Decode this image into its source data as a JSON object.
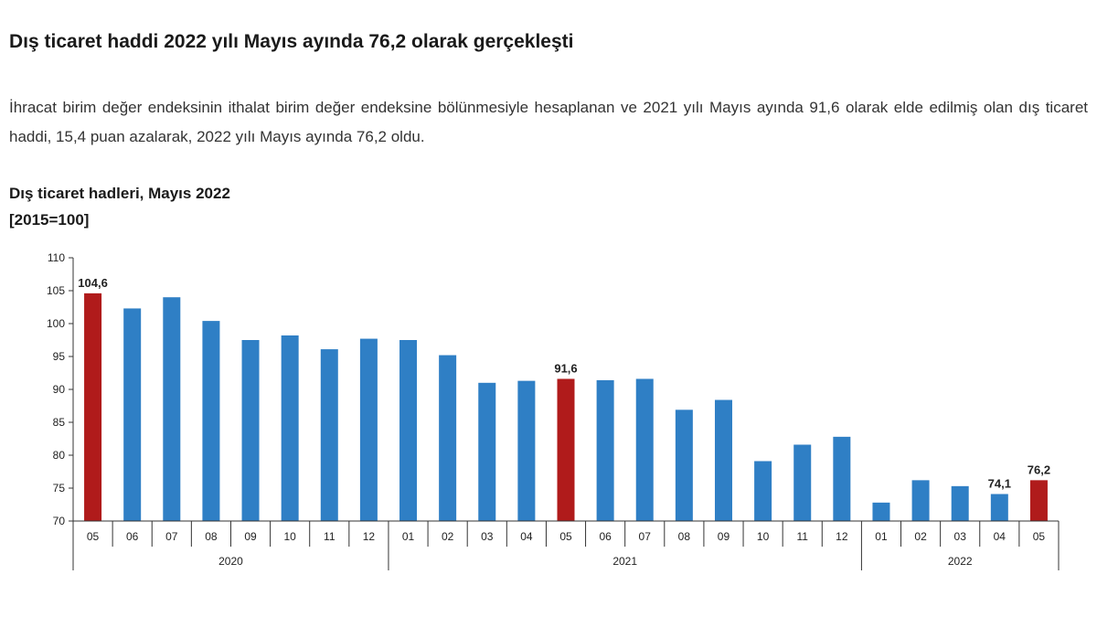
{
  "headline": "Dış ticaret haddi 2022 yılı Mayıs ayında 76,2 olarak gerçekleşti",
  "paragraph": "İhracat birim değer endeksinin ithalat birim değer endeksine bölünmesiyle hesaplanan ve 2021 yılı Mayıs ayında 91,6 olarak elde edilmiş olan dış ticaret haddi, 15,4 puan azalarak, 2022 yılı Mayıs ayında 76,2 oldu.",
  "colors": {
    "bar": "#2f7fc5",
    "highlight": "#b01b1b",
    "axis": "#333333"
  },
  "chart_data": {
    "type": "bar",
    "title": "Dış ticaret hadleri, Mayıs 2022",
    "subtitle": "[2015=100]",
    "ylim": [
      70,
      110
    ],
    "yticks": [
      70,
      75,
      80,
      85,
      90,
      95,
      100,
      105,
      110
    ],
    "categories": [
      "05",
      "06",
      "07",
      "08",
      "09",
      "10",
      "11",
      "12",
      "01",
      "02",
      "03",
      "04",
      "05",
      "06",
      "07",
      "08",
      "09",
      "10",
      "11",
      "12",
      "01",
      "02",
      "03",
      "04",
      "05"
    ],
    "values": [
      104.6,
      102.3,
      104.0,
      100.4,
      97.5,
      98.2,
      96.1,
      97.7,
      97.5,
      95.2,
      91.0,
      91.3,
      91.6,
      91.4,
      91.6,
      86.9,
      88.4,
      79.1,
      81.6,
      82.8,
      72.8,
      76.2,
      75.3,
      74.1,
      76.2
    ],
    "highlighted": [
      0,
      12,
      24
    ],
    "data_labels": [
      {
        "index": 0,
        "text": "104,6"
      },
      {
        "index": 12,
        "text": "91,6"
      },
      {
        "index": 23,
        "text": "74,1"
      },
      {
        "index": 24,
        "text": "76,2"
      }
    ],
    "years": [
      {
        "label": "2020",
        "start": 0,
        "end": 7
      },
      {
        "label": "2021",
        "start": 8,
        "end": 19
      },
      {
        "label": "2022",
        "start": 20,
        "end": 24
      }
    ]
  }
}
